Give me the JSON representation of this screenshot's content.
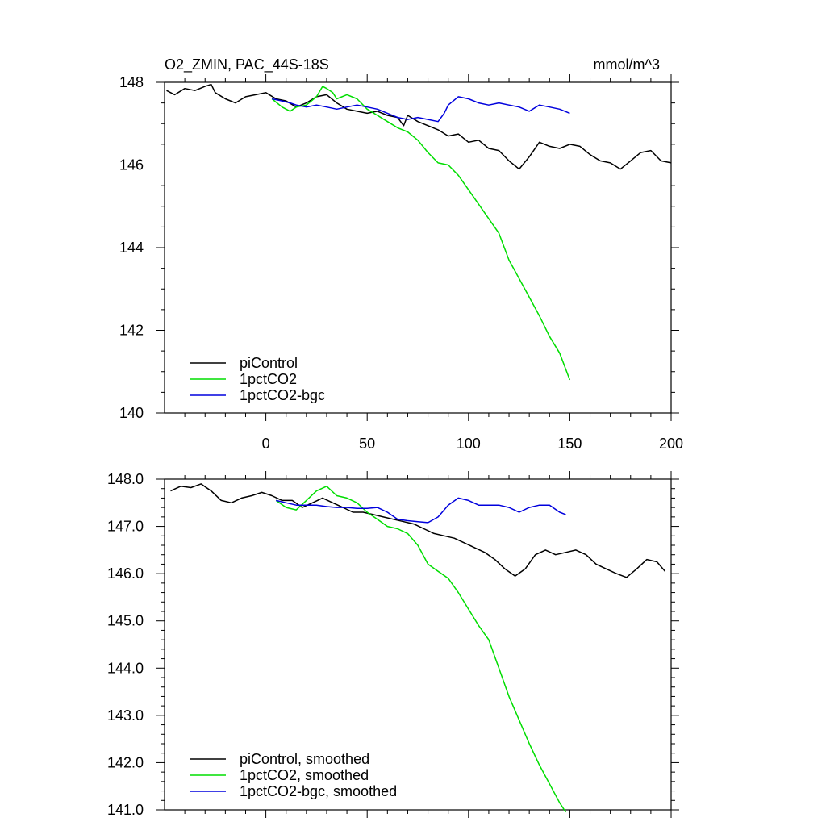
{
  "chart_data": [
    {
      "type": "line",
      "title": "O2_ZMIN, PAC_44S-18S",
      "units": "mmol/m^3",
      "xlim": [
        -50,
        200
      ],
      "ylim": [
        140,
        148
      ],
      "xticks": [
        0,
        50,
        100,
        150,
        200
      ],
      "yticks": [
        140,
        142,
        144,
        146,
        148
      ],
      "ytick_labels": [
        "140",
        "142",
        "144",
        "146",
        "148"
      ],
      "legend_position": "bottom-left",
      "series": [
        {
          "name": "piControl",
          "color": "#000000",
          "x": [
            -49,
            -45,
            -40,
            -35,
            -30,
            -27,
            -25,
            -20,
            -15,
            -10,
            -5,
            0,
            5,
            10,
            15,
            20,
            25,
            30,
            35,
            40,
            45,
            50,
            55,
            60,
            65,
            68,
            70,
            75,
            80,
            85,
            90,
            95,
            100,
            105,
            110,
            115,
            120,
            125,
            130,
            135,
            140,
            145,
            150,
            155,
            160,
            165,
            170,
            175,
            180,
            185,
            190,
            195,
            200
          ],
          "y": [
            147.8,
            147.7,
            147.85,
            147.8,
            147.9,
            147.95,
            147.75,
            147.6,
            147.5,
            147.65,
            147.7,
            147.75,
            147.6,
            147.55,
            147.4,
            147.5,
            147.65,
            147.7,
            147.5,
            147.35,
            147.3,
            147.25,
            147.3,
            147.2,
            147.15,
            146.95,
            147.2,
            147.05,
            146.95,
            146.85,
            146.7,
            146.75,
            146.55,
            146.6,
            146.4,
            146.35,
            146.1,
            145.9,
            146.2,
            146.55,
            146.45,
            146.4,
            146.5,
            146.45,
            146.25,
            146.1,
            146.05,
            145.9,
            146.1,
            146.3,
            146.35,
            146.1,
            146.05
          ]
        },
        {
          "name": "1pctCO2",
          "color": "#00dd00",
          "x": [
            3,
            8,
            12,
            15,
            20,
            25,
            28,
            30,
            33,
            35,
            40,
            45,
            50,
            55,
            60,
            65,
            70,
            75,
            80,
            85,
            90,
            95,
            100,
            105,
            110,
            115,
            120,
            125,
            130,
            135,
            140,
            145,
            150
          ],
          "y": [
            147.6,
            147.4,
            147.3,
            147.4,
            147.45,
            147.65,
            147.9,
            147.85,
            147.75,
            147.6,
            147.7,
            147.6,
            147.35,
            147.2,
            147.05,
            146.9,
            146.8,
            146.6,
            146.3,
            146.05,
            146.0,
            145.75,
            145.4,
            145.05,
            144.7,
            144.35,
            143.7,
            143.25,
            142.8,
            142.35,
            141.85,
            141.45,
            140.8
          ]
        },
        {
          "name": "1pctCO2-bgc",
          "color": "#0000dd",
          "x": [
            3,
            8,
            12,
            15,
            20,
            25,
            30,
            35,
            40,
            45,
            50,
            55,
            60,
            65,
            70,
            75,
            80,
            85,
            88,
            90,
            95,
            100,
            105,
            110,
            115,
            120,
            125,
            130,
            135,
            140,
            145,
            150
          ],
          "y": [
            147.6,
            147.55,
            147.5,
            147.45,
            147.4,
            147.45,
            147.4,
            147.35,
            147.4,
            147.45,
            147.4,
            147.35,
            147.25,
            147.15,
            147.1,
            147.15,
            147.1,
            147.05,
            147.25,
            147.45,
            147.65,
            147.6,
            147.5,
            147.45,
            147.5,
            147.45,
            147.4,
            147.3,
            147.45,
            147.4,
            147.35,
            147.25
          ]
        }
      ]
    },
    {
      "type": "line",
      "xlim": [
        -50,
        200
      ],
      "ylim": [
        141,
        148
      ],
      "xticks": [
        0,
        50,
        100,
        150,
        200
      ],
      "yticks": [
        141,
        142,
        143,
        144,
        145,
        146,
        147,
        148
      ],
      "ytick_labels": [
        "141.0",
        "142.0",
        "143.0",
        "144.0",
        "145.0",
        "146.0",
        "147.0",
        "148.0"
      ],
      "legend_position": "bottom-left",
      "series": [
        {
          "name": "piControl, smoothed",
          "color": "#000000",
          "x": [
            -47,
            -42,
            -37,
            -32,
            -27,
            -22,
            -17,
            -12,
            -7,
            -2,
            3,
            8,
            13,
            18,
            23,
            28,
            33,
            38,
            43,
            48,
            53,
            58,
            63,
            68,
            73,
            78,
            83,
            88,
            93,
            98,
            103,
            108,
            113,
            118,
            123,
            128,
            133,
            138,
            143,
            148,
            153,
            158,
            163,
            168,
            173,
            178,
            183,
            188,
            193,
            197
          ],
          "y": [
            147.75,
            147.85,
            147.82,
            147.9,
            147.75,
            147.55,
            147.5,
            147.6,
            147.65,
            147.72,
            147.65,
            147.55,
            147.55,
            147.4,
            147.5,
            147.6,
            147.5,
            147.4,
            147.3,
            147.3,
            147.25,
            147.2,
            147.15,
            147.1,
            147.05,
            146.95,
            146.85,
            146.8,
            146.75,
            146.65,
            146.55,
            146.45,
            146.3,
            146.1,
            145.95,
            146.1,
            146.4,
            146.5,
            146.4,
            146.45,
            146.5,
            146.4,
            146.2,
            146.1,
            146.0,
            145.92,
            146.1,
            146.3,
            146.25,
            146.05
          ]
        },
        {
          "name": "1pctCO2, smoothed",
          "color": "#00dd00",
          "x": [
            5,
            10,
            15,
            20,
            25,
            30,
            35,
            40,
            45,
            50,
            55,
            60,
            65,
            70,
            75,
            80,
            85,
            90,
            95,
            100,
            105,
            110,
            115,
            120,
            125,
            130,
            135,
            140,
            145,
            148
          ],
          "y": [
            147.55,
            147.4,
            147.35,
            147.55,
            147.75,
            147.85,
            147.65,
            147.6,
            147.5,
            147.3,
            147.15,
            147.0,
            146.95,
            146.85,
            146.6,
            146.2,
            146.05,
            145.9,
            145.6,
            145.25,
            144.9,
            144.6,
            144.0,
            143.4,
            142.9,
            142.4,
            141.95,
            141.55,
            141.15,
            140.95
          ]
        },
        {
          "name": "1pctCO2-bgc, smoothed",
          "color": "#0000dd",
          "x": [
            5,
            10,
            15,
            20,
            25,
            30,
            35,
            40,
            45,
            50,
            55,
            60,
            65,
            70,
            75,
            80,
            85,
            90,
            95,
            100,
            105,
            110,
            115,
            120,
            125,
            130,
            135,
            140,
            145,
            148
          ],
          "y": [
            147.55,
            147.5,
            147.45,
            147.45,
            147.45,
            147.42,
            147.4,
            147.4,
            147.38,
            147.38,
            147.4,
            147.3,
            147.15,
            147.12,
            147.1,
            147.08,
            147.2,
            147.45,
            147.6,
            147.55,
            147.45,
            147.45,
            147.45,
            147.4,
            147.3,
            147.4,
            147.45,
            147.45,
            147.3,
            147.25
          ]
        }
      ]
    }
  ]
}
